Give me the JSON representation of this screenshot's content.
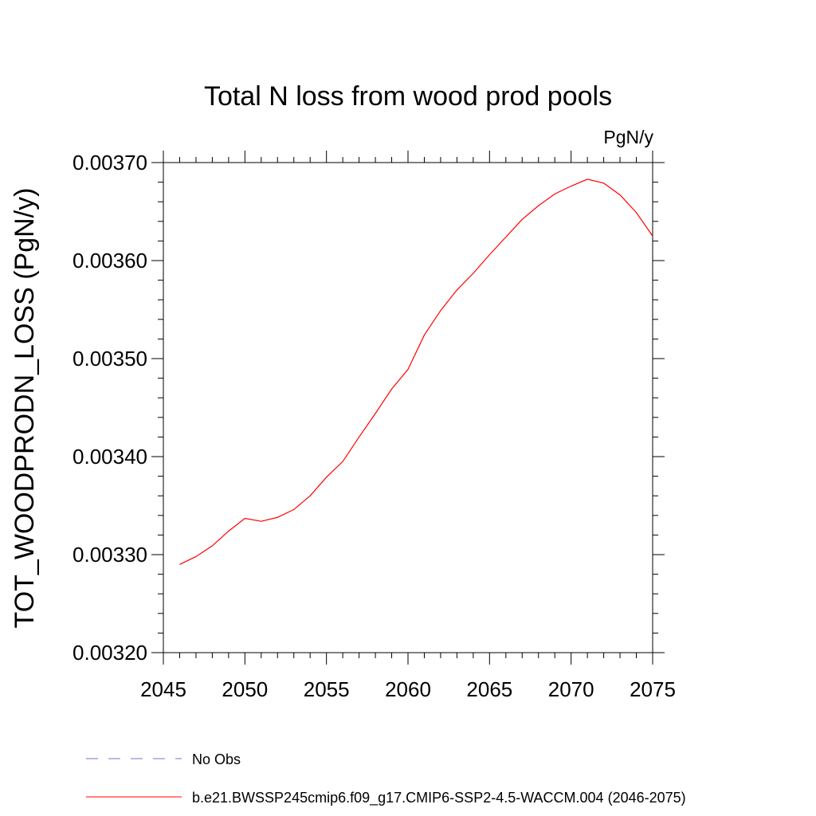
{
  "chart_data": {
    "type": "line",
    "title": "Total N loss from wood prod pools",
    "units": "PgN/y",
    "xlabel": "",
    "ylabel": "TOT_WOODPRODN_LOSS  (PgN/y)",
    "xlim": [
      2045,
      2075
    ],
    "ylim": [
      0.0032,
      0.0037
    ],
    "x_ticks": [
      2045,
      2050,
      2055,
      2060,
      2065,
      2070,
      2075
    ],
    "x_tick_labels": [
      "2045",
      "2050",
      "2055",
      "2060",
      "2065",
      "2070",
      "2075"
    ],
    "y_ticks": [
      0.0032,
      0.0033,
      0.0034,
      0.0035,
      0.0036,
      0.0037
    ],
    "y_tick_labels": [
      "0.00320",
      "0.00330",
      "0.00340",
      "0.00350",
      "0.00360",
      "0.00370"
    ],
    "grid": false,
    "series": [
      {
        "name": "b.e21.BWSSP245cmip6.f09_g17.CMIP6-SSP2-4.5-WACCM.004 (2046-2075)",
        "color": "#ff0000",
        "style": "solid",
        "x": [
          2046,
          2047,
          2048,
          2049,
          2050,
          2051,
          2052,
          2053,
          2054,
          2055,
          2056,
          2057,
          2058,
          2059,
          2060,
          2061,
          2062,
          2063,
          2064,
          2065,
          2066,
          2067,
          2068,
          2069,
          2070,
          2071,
          2072,
          2073,
          2074,
          2075
        ],
        "values": [
          0.00329,
          0.003298,
          0.003309,
          0.003324,
          0.003337,
          0.003334,
          0.003338,
          0.003346,
          0.00336,
          0.003379,
          0.003395,
          0.00342,
          0.003444,
          0.003469,
          0.003489,
          0.003524,
          0.003549,
          0.00357,
          0.003587,
          0.003606,
          0.003624,
          0.003642,
          0.003656,
          0.003668,
          0.003676,
          0.003683,
          0.003679,
          0.003667,
          0.003649,
          0.003625
        ]
      }
    ],
    "legend": {
      "placement": "bottom",
      "entries": [
        {
          "label": "No Obs",
          "color": "#7a6fd0",
          "style": "dashed"
        },
        {
          "label": "b.e21.BWSSP245cmip6.f09_g17.CMIP6-SSP2-4.5-WACCM.004 (2046-2075)",
          "color": "#ff0000",
          "style": "solid"
        }
      ]
    }
  }
}
